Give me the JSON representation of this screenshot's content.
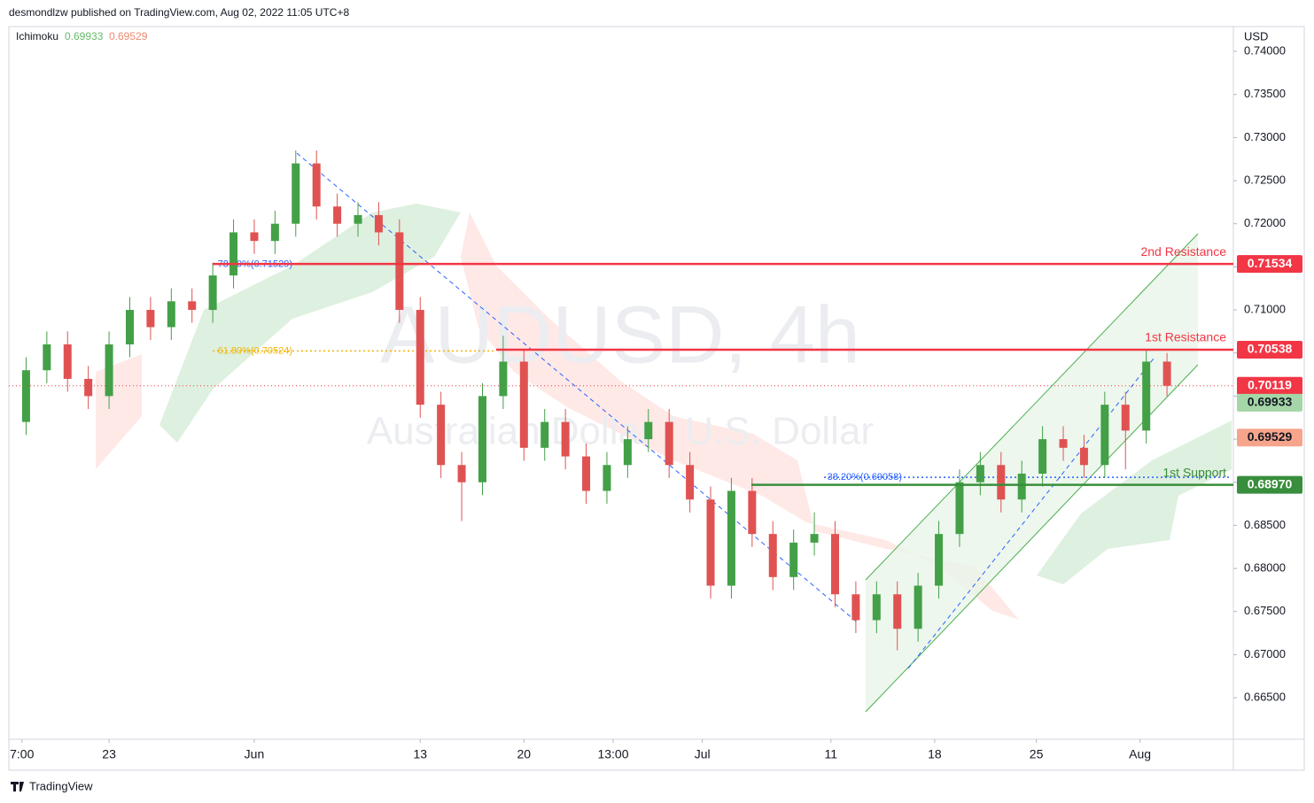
{
  "header": {
    "title": "desmondlzw published on TradingView.com, Aug 02, 2022 11:05 UTC+8",
    "brand": "TradingView"
  },
  "chart_data": {
    "type": "candlestick",
    "title": "AUDUSD, 4h",
    "subtitle": "Australian Dollar / U.S. Dollar",
    "currency": "USD",
    "indicator": {
      "name": "Ichimoku",
      "values": [
        0.69933,
        0.69529
      ],
      "colors": [
        "#a5d6a7",
        "#f6a58c"
      ]
    },
    "up_color": "#43a047",
    "down_color": "#e05252",
    "grid": false,
    "x": [
      -4,
      -3,
      -2,
      -1,
      0,
      1,
      2,
      3,
      4,
      5,
      6,
      7,
      8,
      9,
      10,
      11,
      12,
      13,
      14,
      15,
      16,
      17,
      18,
      19,
      20,
      21,
      22,
      23,
      24,
      25,
      26,
      27,
      28,
      29,
      30,
      31,
      32,
      33,
      34,
      35,
      36,
      37,
      38,
      39,
      40,
      41,
      42,
      43,
      44,
      45,
      46,
      47,
      48,
      49,
      50,
      51
    ],
    "open": [
      0.697,
      0.703,
      0.706,
      0.702,
      0.7,
      0.706,
      0.71,
      0.708,
      0.711,
      0.71,
      0.714,
      0.719,
      0.718,
      0.72,
      0.727,
      0.722,
      0.72,
      0.721,
      0.719,
      0.71,
      0.699,
      0.692,
      0.69,
      0.7,
      0.704,
      0.694,
      0.697,
      0.693,
      0.689,
      0.692,
      0.695,
      0.697,
      0.692,
      0.688,
      0.678,
      0.689,
      0.684,
      0.679,
      0.683,
      0.684,
      0.677,
      0.674,
      0.677,
      0.673,
      0.678,
      0.684,
      0.69,
      0.692,
      0.688,
      0.691,
      0.695,
      0.694,
      0.692,
      0.699,
      0.696,
      0.704
    ],
    "high": [
      0.7045,
      0.7075,
      0.7075,
      0.7035,
      0.7075,
      0.7115,
      0.7115,
      0.7125,
      0.7125,
      0.7155,
      0.7205,
      0.7205,
      0.7215,
      0.7285,
      0.7285,
      0.7235,
      0.7225,
      0.7225,
      0.7205,
      0.7115,
      0.7005,
      0.6935,
      0.7015,
      0.707,
      0.7055,
      0.6985,
      0.6985,
      0.6945,
      0.6935,
      0.6965,
      0.6985,
      0.6985,
      0.6935,
      0.6895,
      0.6905,
      0.6905,
      0.6855,
      0.6845,
      0.6865,
      0.6855,
      0.6785,
      0.6785,
      0.6785,
      0.6795,
      0.6855,
      0.6915,
      0.6935,
      0.6935,
      0.6925,
      0.6965,
      0.6965,
      0.6955,
      0.7005,
      0.7005,
      0.7055,
      0.705
    ],
    "low": [
      0.6955,
      0.7015,
      0.7005,
      0.6985,
      0.6985,
      0.7045,
      0.7065,
      0.7065,
      0.7085,
      0.7085,
      0.7125,
      0.7165,
      0.7165,
      0.7185,
      0.7205,
      0.7185,
      0.7185,
      0.7175,
      0.7085,
      0.6975,
      0.6905,
      0.6855,
      0.6885,
      0.6985,
      0.6925,
      0.6925,
      0.6915,
      0.6875,
      0.6875,
      0.6905,
      0.6935,
      0.6905,
      0.6865,
      0.6765,
      0.6765,
      0.6825,
      0.6775,
      0.6775,
      0.6815,
      0.6755,
      0.6725,
      0.6725,
      0.6705,
      0.6715,
      0.6765,
      0.6825,
      0.6885,
      0.6865,
      0.6865,
      0.6895,
      0.6925,
      0.6905,
      0.6905,
      0.6915,
      0.6945,
      0.7
    ],
    "close": [
      0.703,
      0.706,
      0.702,
      0.7,
      0.706,
      0.71,
      0.708,
      0.711,
      0.71,
      0.714,
      0.719,
      0.718,
      0.72,
      0.727,
      0.722,
      0.72,
      0.721,
      0.719,
      0.71,
      0.699,
      0.692,
      0.69,
      0.7,
      0.704,
      0.694,
      0.697,
      0.693,
      0.689,
      0.692,
      0.695,
      0.697,
      0.692,
      0.688,
      0.678,
      0.689,
      0.684,
      0.679,
      0.683,
      0.684,
      0.677,
      0.674,
      0.677,
      0.673,
      0.678,
      0.684,
      0.69,
      0.692,
      0.688,
      0.691,
      0.695,
      0.694,
      0.692,
      0.699,
      0.696,
      0.704,
      0.7012
    ],
    "xlim": [
      -4.83,
      54.2
    ],
    "xticks": [
      {
        "value": -4.2,
        "label": "7:00"
      },
      {
        "value": 0,
        "label": "23"
      },
      {
        "value": 7,
        "label": "Jun"
      },
      {
        "value": 15,
        "label": "13"
      },
      {
        "value": 20,
        "label": "20"
      },
      {
        "value": 24.3,
        "label": "13:00"
      },
      {
        "value": 28.6,
        "label": "Jul"
      },
      {
        "value": 34.8,
        "label": "11"
      },
      {
        "value": 39.8,
        "label": "18"
      },
      {
        "value": 44.7,
        "label": "25"
      },
      {
        "value": 49.7,
        "label": "Aug"
      }
    ],
    "ylim": [
      0.66018,
      0.74288
    ],
    "yticks": [
      {
        "value": 0.665,
        "label": "0.66500"
      },
      {
        "value": 0.67,
        "label": "0.67000"
      },
      {
        "value": 0.675,
        "label": "0.67500"
      },
      {
        "value": 0.68,
        "label": "0.68000"
      },
      {
        "value": 0.685,
        "label": "0.68500"
      },
      {
        "value": 0.69,
        "label": "0.69000"
      },
      {
        "value": 0.695,
        "label": "0.69500"
      },
      {
        "value": 0.7,
        "label": "0.70000"
      },
      {
        "value": 0.705,
        "label": "0.70500"
      },
      {
        "value": 0.71,
        "label": "0.71000"
      },
      {
        "value": 0.715,
        "label": "0.71500"
      },
      {
        "value": 0.72,
        "label": "0.72000"
      },
      {
        "value": 0.725,
        "label": "0.72500"
      },
      {
        "value": 0.73,
        "label": "0.73000"
      },
      {
        "value": 0.735,
        "label": "0.73500"
      },
      {
        "value": 0.74,
        "label": "0.74000"
      }
    ],
    "levels": [
      {
        "name": "2nd Resistance",
        "value": 0.71534,
        "color": "#f23645"
      },
      {
        "name": "1st Resistance",
        "value": 0.70538,
        "color": "#f23645"
      },
      {
        "name": "1st Support",
        "value": 0.6897,
        "value_label": "0.68970",
        "color": "#388e3c"
      }
    ],
    "last_price": 0.70119,
    "last_price_color": "#f23645",
    "fib": [
      {
        "label": "78.60%(0.71529)",
        "value": 0.71529,
        "color": "#2962ff"
      },
      {
        "label": "61.80%(0.70524)",
        "value": 0.70524,
        "color": "#f5b400"
      },
      {
        "label": "38.20%(0.69058)",
        "value": 0.69058,
        "color": "#2962ff"
      }
    ]
  }
}
